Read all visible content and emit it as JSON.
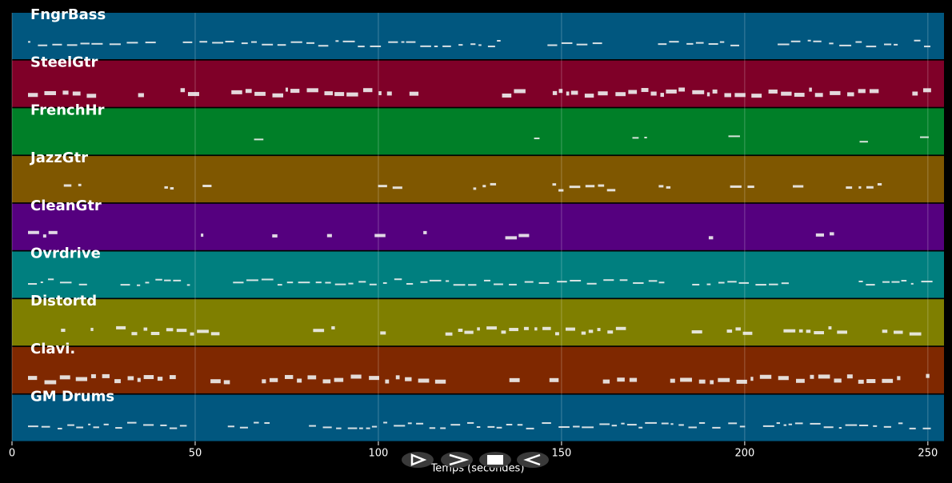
{
  "chart_data": {
    "type": "pianoroll",
    "xlabel": "Temps (secondes)",
    "xlim": [
      0,
      254.4
    ],
    "xticks": [
      0,
      50,
      100,
      150,
      200,
      250
    ],
    "grid": true,
    "series": [
      {
        "name": "FngrBass",
        "color": "#01577f"
      },
      {
        "name": "SteelGtr",
        "color": "#7f0028"
      },
      {
        "name": "FrenchHr",
        "color": "#007f28"
      },
      {
        "name": "JazzGtr",
        "color": "#7f5700"
      },
      {
        "name": "CleanGtr",
        "color": "#55007f"
      },
      {
        "name": "Ovrdrive",
        "color": "#007f7f"
      },
      {
        "name": "Distortd",
        "color": "#7f7f00"
      },
      {
        "name": "Clavi.",
        "color": "#7f2800"
      },
      {
        "name": "GM Drums",
        "color": "#01577f"
      }
    ]
  }
}
